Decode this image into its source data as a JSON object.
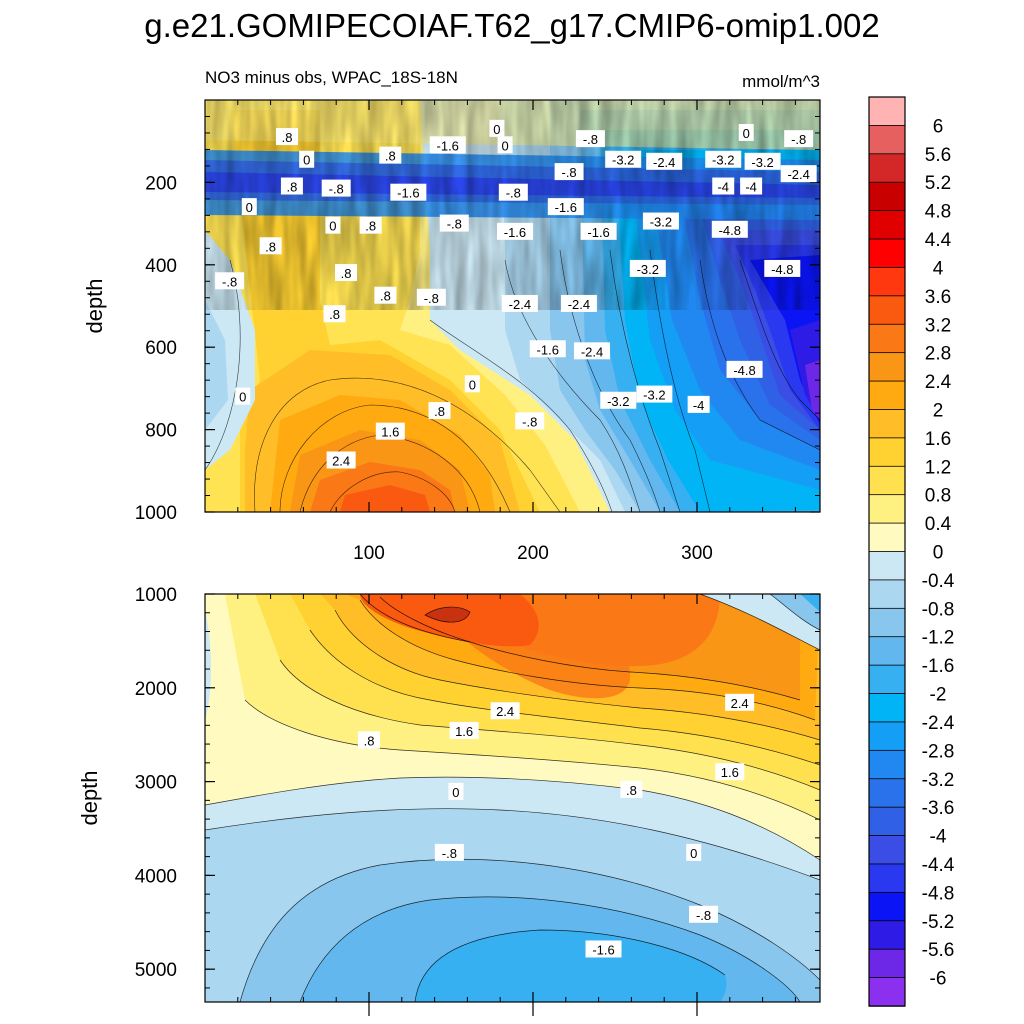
{
  "figure": {
    "title": "g.e21.GOMIPECOIAF.T62_g17.CMIP6-omip1.002",
    "left_subtitle": "NO3 minus obs, WPAC_18S-18N",
    "right_subtitle": "mmol/m^3"
  },
  "chart_data": [
    {
      "type": "heatmap",
      "panel": "upper",
      "ylabel": "depth",
      "xlabel": "",
      "xlim": [
        0,
        375
      ],
      "ylim": [
        1000,
        0
      ],
      "x_ticks": [
        "100",
        "200",
        "300"
      ],
      "x_tick_values": [
        100,
        200,
        300
      ],
      "y_ticks": [
        "200",
        "400",
        "600",
        "800",
        "1000"
      ],
      "y_tick_values": [
        200,
        400,
        600,
        800,
        1000
      ],
      "contour_interval": 0.4,
      "contour_labels": [
        {
          "text": ".8",
          "x": 50,
          "y": 90
        },
        {
          "text": "0",
          "x": 178,
          "y": 70
        },
        {
          "text": "0",
          "x": 183,
          "y": 110
        },
        {
          "text": "-1.6",
          "x": 148,
          "y": 110
        },
        {
          "text": "0",
          "x": 330,
          "y": 80
        },
        {
          "text": "-.8",
          "x": 235,
          "y": 95
        },
        {
          "text": "-.8",
          "x": 362,
          "y": 95
        },
        {
          "text": ".8",
          "x": 113,
          "y": 135
        },
        {
          "text": "0",
          "x": 62,
          "y": 145
        },
        {
          "text": "-3.2",
          "x": 255,
          "y": 145
        },
        {
          "text": "-2.4",
          "x": 280,
          "y": 150
        },
        {
          "text": "-3.2",
          "x": 316,
          "y": 145
        },
        {
          "text": "-3.2",
          "x": 340,
          "y": 150
        },
        {
          "text": "-.8",
          "x": 222,
          "y": 175
        },
        {
          "text": ".8",
          "x": 53,
          "y": 210
        },
        {
          "text": "-.8",
          "x": 80,
          "y": 215
        },
        {
          "text": "-1.6",
          "x": 124,
          "y": 225
        },
        {
          "text": "-.8",
          "x": 188,
          "y": 225
        },
        {
          "text": "-2.4",
          "x": 362,
          "y": 180
        },
        {
          "text": "-4",
          "x": 316,
          "y": 210
        },
        {
          "text": "-4",
          "x": 333,
          "y": 210
        },
        {
          "text": "0",
          "x": 27,
          "y": 260
        },
        {
          "text": "-1.6",
          "x": 220,
          "y": 260
        },
        {
          "text": "-3.2",
          "x": 278,
          "y": 295
        },
        {
          "text": "0",
          "x": 78,
          "y": 305
        },
        {
          "text": ".8",
          "x": 101,
          "y": 305
        },
        {
          "text": "-.8",
          "x": 152,
          "y": 300
        },
        {
          "text": "-1.6",
          "x": 189,
          "y": 320
        },
        {
          "text": "-1.6",
          "x": 240,
          "y": 320
        },
        {
          "text": "-4.8",
          "x": 320,
          "y": 315
        },
        {
          "text": ".8",
          "x": 40,
          "y": 355
        },
        {
          "text": "-.8",
          "x": 15,
          "y": 440
        },
        {
          "text": ".8",
          "x": 86,
          "y": 420
        },
        {
          "text": "-3.2",
          "x": 270,
          "y": 410
        },
        {
          "text": "-4.8",
          "x": 352,
          "y": 410
        },
        {
          "text": ".8",
          "x": 110,
          "y": 475
        },
        {
          "text": "-.8",
          "x": 138,
          "y": 480
        },
        {
          "text": "-2.4",
          "x": 192,
          "y": 495
        },
        {
          "text": "-2.4",
          "x": 228,
          "y": 495
        },
        {
          "text": ".8",
          "x": 79,
          "y": 520
        },
        {
          "text": "-1.6",
          "x": 209,
          "y": 605
        },
        {
          "text": "-2.4",
          "x": 236,
          "y": 610
        },
        {
          "text": "-4.8",
          "x": 329,
          "y": 655
        },
        {
          "text": "0",
          "x": 163,
          "y": 690
        },
        {
          "text": "0",
          "x": 23,
          "y": 720
        },
        {
          "text": "-3.2",
          "x": 252,
          "y": 730
        },
        {
          "text": "-3.2",
          "x": 274,
          "y": 715
        },
        {
          "text": "-4",
          "x": 301,
          "y": 740
        },
        {
          "text": ".8",
          "x": 143,
          "y": 755
        },
        {
          "text": "-.8",
          "x": 198,
          "y": 780
        },
        {
          "text": "1.6",
          "x": 113,
          "y": 805
        },
        {
          "text": "2.4",
          "x": 83,
          "y": 875
        }
      ]
    },
    {
      "type": "heatmap",
      "panel": "lower",
      "ylabel": "depth",
      "xlabel": "",
      "xlim": [
        0,
        375
      ],
      "ylim": [
        5350,
        1000
      ],
      "x_tick_values": [
        100,
        200,
        300
      ],
      "y_ticks": [
        "1000",
        "2000",
        "3000",
        "4000",
        "5000"
      ],
      "y_tick_values": [
        1000,
        2000,
        3000,
        4000,
        5000
      ],
      "contour_interval": 0.4,
      "contour_labels": [
        {
          "text": "2.4",
          "x": 183,
          "y": 2250
        },
        {
          "text": "2.4",
          "x": 326,
          "y": 2160
        },
        {
          "text": "1.6",
          "x": 158,
          "y": 2460
        },
        {
          "text": ".8",
          "x": 100,
          "y": 2560
        },
        {
          "text": "1.6",
          "x": 320,
          "y": 2900
        },
        {
          "text": "0",
          "x": 153,
          "y": 3110
        },
        {
          "text": ".8",
          "x": 260,
          "y": 3090
        },
        {
          "text": "-.8",
          "x": 149,
          "y": 3760
        },
        {
          "text": "0",
          "x": 298,
          "y": 3760
        },
        {
          "text": "-.8",
          "x": 304,
          "y": 4420
        },
        {
          "text": "-1.6",
          "x": 243,
          "y": 4790
        }
      ]
    }
  ],
  "colorbar": {
    "labels": [
      "6",
      "5.6",
      "5.2",
      "4.8",
      "4.4",
      "4",
      "3.6",
      "3.2",
      "2.8",
      "2.4",
      "2",
      "1.6",
      "1.2",
      "0.8",
      "0.4",
      "0",
      "-0.4",
      "-0.8",
      "-1.2",
      "-1.6",
      "-2",
      "-2.4",
      "-2.8",
      "-3.2",
      "-3.6",
      "-4",
      "-4.4",
      "-4.8",
      "-5.2",
      "-5.6",
      "-6"
    ],
    "colors": [
      "#ffb3b3",
      "#e66060",
      "#d42828",
      "#c80000",
      "#e00000",
      "#ff0000",
      "#ff3810",
      "#fa5a10",
      "#fa7815",
      "#fa9615",
      "#ffaa10",
      "#ffbe28",
      "#ffd232",
      "#ffe150",
      "#fff082",
      "#fffac0",
      "#cce8f4",
      "#acd7f0",
      "#88c6ee",
      "#62b8ee",
      "#36b0f0",
      "#00b4f5",
      "#159ef5",
      "#2088f0",
      "#2a72ec",
      "#3060e6",
      "#3a4ee6",
      "#2a38ef",
      "#0a14f5",
      "#2e1ce6",
      "#6c28e6",
      "#8c30f0"
    ]
  },
  "accent_colors": {
    "zero_fill": "#fffac0",
    "axis": "#000000"
  }
}
